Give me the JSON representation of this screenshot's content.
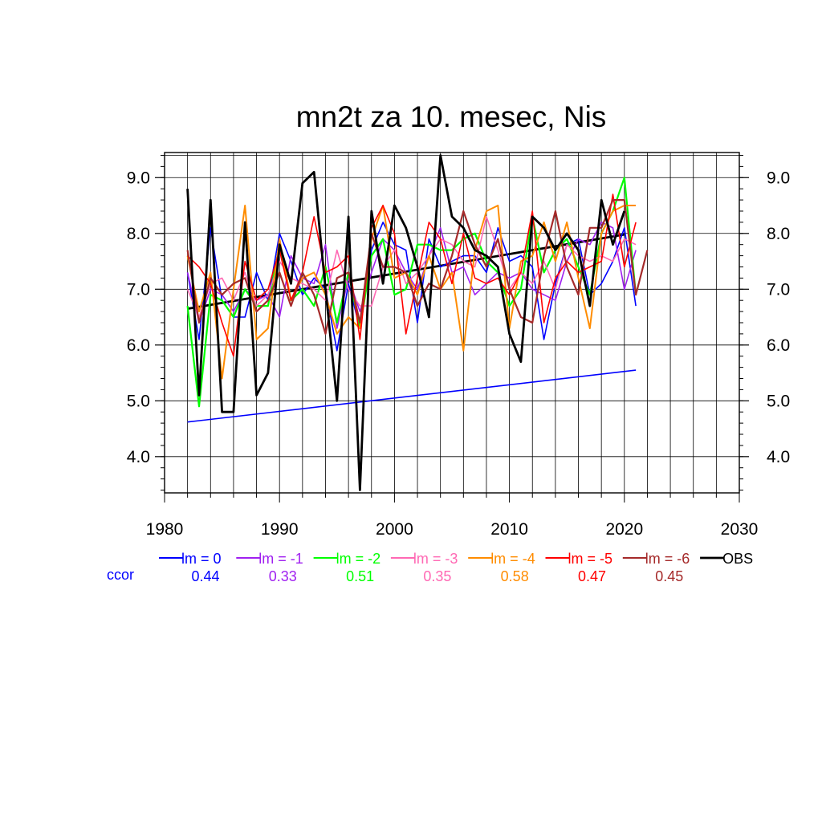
{
  "chart_data": {
    "type": "line",
    "title": "mn2t za 10. mesec, Nis",
    "xlabel": "",
    "ylabel": "",
    "xlim": [
      1980,
      2030
    ],
    "ylim": [
      3.35,
      9.45
    ],
    "xticks": [
      "1980",
      "1990",
      "2000",
      "2010",
      "2020",
      "2030"
    ],
    "yticks": [
      "4.0",
      "5.0",
      "6.0",
      "7.0",
      "8.0",
      "9.0"
    ],
    "grid": true,
    "legend_position": "bottom",
    "ccor_label": "ccor",
    "x": [
      1982,
      1983,
      1984,
      1985,
      1986,
      1987,
      1988,
      1989,
      1990,
      1991,
      1992,
      1993,
      1994,
      1995,
      1996,
      1997,
      1998,
      1999,
      2000,
      2001,
      2002,
      2003,
      2004,
      2005,
      2006,
      2007,
      2008,
      2009,
      2010,
      2011,
      2012,
      2013,
      2014,
      2015,
      2016,
      2017,
      2018,
      2019,
      2020,
      2021,
      2022
    ],
    "series": [
      {
        "name": "lm = 0",
        "ccor": "0.44",
        "color": "#0000ff",
        "width": 1.6,
        "values": [
          7.3,
          6.1,
          8.1,
          6.8,
          6.5,
          6.5,
          7.3,
          6.8,
          8.0,
          7.5,
          6.9,
          7.2,
          7.0,
          5.9,
          7.1,
          6.3,
          7.7,
          8.2,
          7.8,
          7.7,
          6.4,
          7.9,
          7.4,
          7.5,
          7.6,
          7.6,
          7.3,
          8.1,
          7.5,
          7.6,
          7.4,
          6.1,
          7.1,
          7.8,
          7.9,
          6.9,
          7.1,
          7.5,
          8.1,
          6.7,
          null
        ]
      },
      {
        "name": "lm = -1",
        "ccor": "0.33",
        "color": "#a020f0",
        "width": 1.6,
        "values": [
          7.3,
          6.4,
          7.0,
          6.9,
          6.6,
          7.0,
          6.8,
          6.9,
          6.5,
          7.6,
          7.2,
          7.1,
          7.8,
          6.3,
          7.2,
          6.6,
          7.3,
          7.9,
          7.7,
          7.3,
          7.0,
          7.6,
          8.1,
          7.3,
          7.4,
          6.9,
          7.1,
          7.3,
          7.2,
          7.3,
          7.0,
          6.9,
          6.8,
          7.5,
          7.9,
          7.8,
          8.2,
          8.1,
          7.0,
          7.7,
          null
        ]
      },
      {
        "name": "lm = -2",
        "ccor": "0.51",
        "color": "#00ff00",
        "width": 2.2,
        "values": [
          6.7,
          4.9,
          6.9,
          6.8,
          6.5,
          7.0,
          6.7,
          6.7,
          7.8,
          6.8,
          7.0,
          6.7,
          7.4,
          6.4,
          7.3,
          6.3,
          7.6,
          7.9,
          6.9,
          7.0,
          7.8,
          7.8,
          7.7,
          7.7,
          7.9,
          8.0,
          7.5,
          7.3,
          6.7,
          7.0,
          8.3,
          7.3,
          7.7,
          7.9,
          7.4,
          6.9,
          8.0,
          8.4,
          9.0,
          6.9,
          null
        ]
      },
      {
        "name": "lm = -3",
        "ccor": "0.35",
        "color": "#ff69b4",
        "width": 1.6,
        "values": [
          7.0,
          6.5,
          7.1,
          7.2,
          6.8,
          7.3,
          6.7,
          6.9,
          7.5,
          7.2,
          7.1,
          7.0,
          6.8,
          7.7,
          7.0,
          6.7,
          6.7,
          7.4,
          7.7,
          7.1,
          7.3,
          7.6,
          7.9,
          7.8,
          7.5,
          7.4,
          8.3,
          7.7,
          7.0,
          7.3,
          7.1,
          7.5,
          7.0,
          7.8,
          7.6,
          7.5,
          7.6,
          7.5,
          7.9,
          7.8,
          null
        ]
      },
      {
        "name": "lm = -4",
        "ccor": "0.58",
        "color": "#ff8c00",
        "width": 2.0,
        "values": [
          7.6,
          6.6,
          7.3,
          5.4,
          7.0,
          8.5,
          6.1,
          6.3,
          7.9,
          6.8,
          7.2,
          7.3,
          6.9,
          6.2,
          6.5,
          6.3,
          7.9,
          8.5,
          7.2,
          7.3,
          6.9,
          7.6,
          7.0,
          7.3,
          5.9,
          7.7,
          8.4,
          8.5,
          6.3,
          7.5,
          7.6,
          8.2,
          7.5,
          8.2,
          7.2,
          6.3,
          8.0,
          8.4,
          8.5,
          8.5,
          null
        ]
      },
      {
        "name": "lm = -5",
        "ccor": "0.47",
        "color": "#ff0000",
        "width": 1.6,
        "values": [
          7.6,
          7.4,
          7.1,
          6.4,
          5.8,
          7.5,
          6.8,
          7.0,
          7.7,
          6.8,
          7.3,
          8.3,
          7.3,
          7.4,
          7.6,
          6.1,
          8.1,
          8.5,
          8.0,
          6.2,
          7.2,
          8.2,
          7.9,
          7.1,
          8.0,
          7.2,
          7.1,
          7.2,
          6.9,
          7.3,
          8.4,
          6.4,
          7.2,
          7.5,
          7.3,
          7.4,
          7.5,
          8.7,
          7.4,
          8.2,
          null
        ]
      },
      {
        "name": "lm = -6",
        "ccor": "0.45",
        "color": "#a52a2a",
        "width": 2.2,
        "values": [
          7.7,
          6.4,
          7.2,
          6.9,
          7.1,
          7.2,
          6.6,
          6.8,
          7.3,
          6.7,
          7.3,
          6.9,
          6.2,
          7.2,
          7.3,
          6.4,
          8.0,
          7.4,
          7.4,
          7.3,
          6.7,
          7.1,
          7.0,
          7.6,
          8.4,
          7.8,
          7.4,
          7.9,
          7.0,
          6.5,
          6.4,
          7.6,
          8.4,
          7.4,
          6.9,
          8.1,
          8.1,
          8.6,
          8.6,
          6.9,
          7.7
        ]
      },
      {
        "name": "OBS",
        "ccor": "",
        "color": "#000000",
        "width": 2.8,
        "values": [
          8.8,
          5.1,
          8.6,
          4.8,
          4.8,
          8.2,
          5.1,
          5.5,
          7.8,
          7.1,
          8.9,
          9.1,
          7.0,
          5.0,
          8.3,
          3.4,
          8.4,
          7.1,
          8.5,
          8.1,
          7.4,
          6.5,
          9.4,
          8.3,
          8.1,
          7.7,
          7.6,
          7.4,
          6.2,
          5.7,
          8.3,
          8.1,
          7.7,
          8.0,
          7.7,
          6.7,
          8.6,
          7.8,
          8.4,
          null,
          null
        ]
      }
    ],
    "trend_lines": [
      {
        "name": "OBS trend",
        "color": "#000000",
        "x": [
          1982,
          2020
        ],
        "y": [
          6.65,
          7.98
        ]
      },
      {
        "name": "lm = 0 trend",
        "color": "#0000ff",
        "x": [
          1982,
          2021
        ],
        "y": [
          4.62,
          5.55
        ]
      }
    ]
  }
}
